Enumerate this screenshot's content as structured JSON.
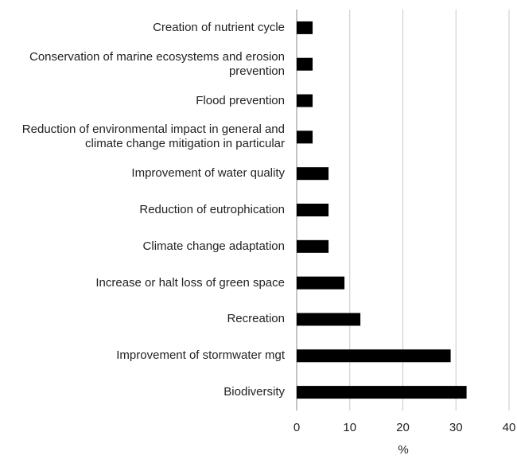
{
  "chart_data": {
    "type": "barh",
    "categories": [
      "Creation of nutrient cycle",
      "Conservation of marine ecosystems and erosion prevention",
      "Flood prevention",
      "Reduction of environmental impact in general and climate change mitigation in particular",
      "Improvement of water quality",
      "Reduction of eutrophication",
      "Climate change adaptation",
      "Increase or halt loss of green space",
      "Recreation",
      "Improvement of stormwater mgt",
      "Biodiversity"
    ],
    "values": [
      3,
      3,
      3,
      3,
      6,
      6,
      6,
      9,
      12,
      29,
      32
    ],
    "color": "#000000",
    "xlabel": "%",
    "xlim": [
      0,
      40
    ],
    "xticks": [
      0,
      10,
      20,
      30,
      40
    ],
    "grid": true
  }
}
